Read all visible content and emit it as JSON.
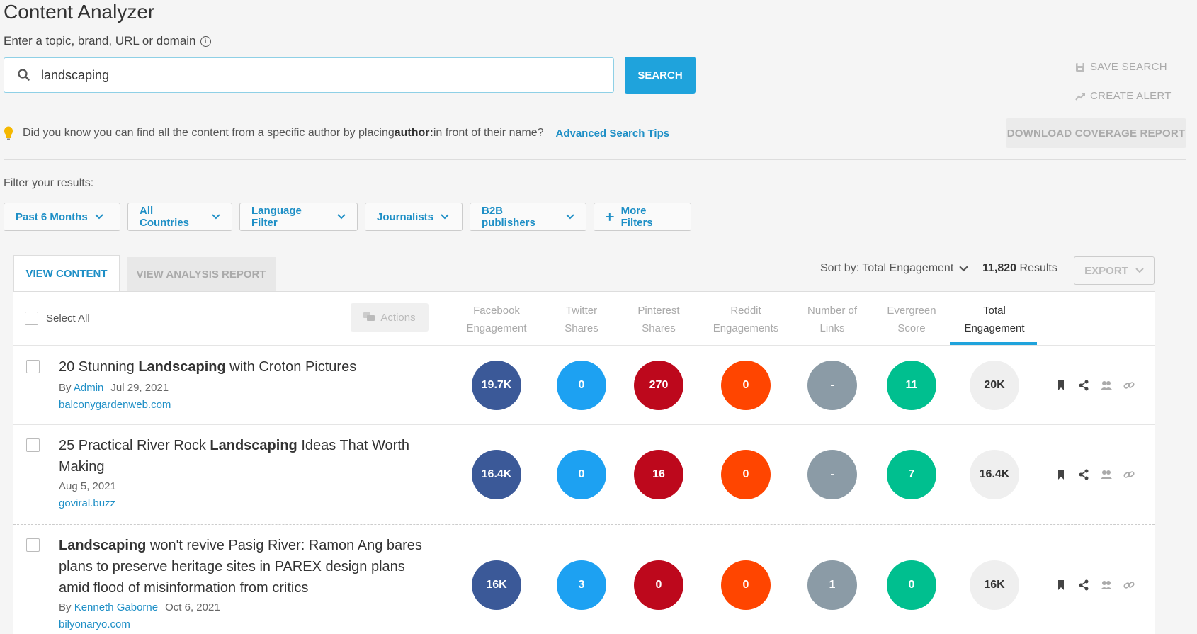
{
  "page": {
    "title": "Content Analyzer",
    "subtitle": "Enter a topic, brand, URL or domain"
  },
  "search": {
    "value": "landscaping",
    "button_label": "SEARCH"
  },
  "side_actions": {
    "save_search": "SAVE SEARCH",
    "create_alert": "CREATE ALERT",
    "download_report": "DOWNLOAD COVERAGE REPORT"
  },
  "tip": {
    "prefix": "Did you know you can find all the content from a specific author by placing ",
    "keyword": "author:",
    "suffix": " in front of their name?",
    "link_label": "Advanced Search Tips"
  },
  "filters": {
    "label": "Filter your results:",
    "items": [
      "Past 6 Months",
      "All Countries",
      "Language Filter",
      "Journalists",
      "B2B publishers"
    ],
    "more_label": "More Filters"
  },
  "tabs": {
    "view_content": "VIEW CONTENT",
    "view_analysis": "VIEW ANALYSIS REPORT"
  },
  "toolbar": {
    "sort_label": "Sort by: Total Engagement",
    "results_count": "11,820",
    "results_label": "Results",
    "export_label": "EXPORT"
  },
  "table": {
    "select_all": "Select All",
    "actions_label": "Actions",
    "columns": [
      {
        "line1": "Facebook",
        "line2": "Engagement"
      },
      {
        "line1": "Twitter",
        "line2": "Shares"
      },
      {
        "line1": "Pinterest",
        "line2": "Shares"
      },
      {
        "line1": "Reddit",
        "line2": "Engagements"
      },
      {
        "line1": "Number of",
        "line2": "Links"
      },
      {
        "line1": "Evergreen",
        "line2": "Score"
      },
      {
        "line1": "Total",
        "line2": "Engagement"
      }
    ],
    "rows": [
      {
        "title_pre": "20 Stunning ",
        "title_bold": "Landscaping",
        "title_post": " with Croton Pictures",
        "by": "By",
        "author": "Admin",
        "date": "Jul 29, 2021",
        "domain": "balconygardenweb.com",
        "facebook": "19.7K",
        "twitter": "0",
        "pinterest": "270",
        "reddit": "0",
        "links": "-",
        "evergreen": "11",
        "total": "20K"
      },
      {
        "title_pre": "25 Practical River Rock ",
        "title_bold": "Landscaping",
        "title_post": " Ideas That Worth Making",
        "date": "Aug 5, 2021",
        "domain": "goviral.buzz",
        "facebook": "16.4K",
        "twitter": "0",
        "pinterest": "16",
        "reddit": "0",
        "links": "-",
        "evergreen": "7",
        "total": "16.4K"
      },
      {
        "title_pre": "",
        "title_bold": "Landscaping",
        "title_post": " won't revive Pasig River: Ramon Ang bares plans to preserve heritage sites in PAREX design plans amid flood of misinformation from critics",
        "by": "By",
        "author": "Kenneth Gaborne",
        "date": "Oct 6, 2021",
        "domain": "bilyonaryo.com",
        "facebook": "16K",
        "twitter": "3",
        "pinterest": "0",
        "reddit": "0",
        "links": "1",
        "evergreen": "0",
        "total": "16K"
      }
    ]
  },
  "colors": {
    "accent": "#1fa3dc",
    "link": "#1e8fc6",
    "facebook": "#3b5998",
    "twitter": "#1da1f2",
    "pinterest": "#bd081c",
    "reddit": "#ff4500",
    "links": "#8b9ba6",
    "evergreen": "#00bf8f"
  }
}
